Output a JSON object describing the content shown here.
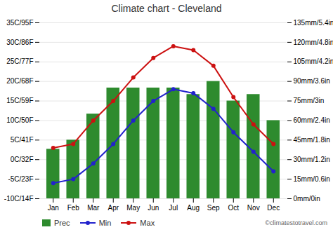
{
  "chart_data": {
    "type": "combo",
    "title": "Climate chart - Cleveland",
    "categories": [
      "Jan",
      "Feb",
      "Mar",
      "Apr",
      "May",
      "Jun",
      "Jul",
      "Aug",
      "Sep",
      "Oct",
      "Nov",
      "Dec"
    ],
    "series": [
      {
        "name": "Prec",
        "type": "bar",
        "axis": "y2",
        "color": "#2e8b2e",
        "values": [
          38,
          45,
          65,
          85,
          85,
          85,
          85,
          80,
          90,
          75,
          80,
          60
        ]
      },
      {
        "name": "Min",
        "type": "line",
        "color": "#2222cc",
        "marker": "circle",
        "values": [
          -6,
          -5,
          -1,
          4,
          10,
          15,
          18,
          17,
          13,
          7,
          2,
          -3
        ]
      },
      {
        "name": "Max",
        "type": "line",
        "color": "#cc1111",
        "marker": "circle",
        "values": [
          3,
          4,
          10,
          15,
          21,
          26,
          29,
          28,
          24,
          16,
          9,
          4
        ]
      }
    ],
    "ylim": [
      -10,
      35
    ],
    "yticks": [
      {
        "value": -10,
        "label": "-10C/14F"
      },
      {
        "value": -5,
        "label": "-5C/23F"
      },
      {
        "value": 0,
        "label": "0C/32F"
      },
      {
        "value": 5,
        "label": "5C/41F"
      },
      {
        "value": 10,
        "label": "10C/50F"
      },
      {
        "value": 15,
        "label": "15C/59F"
      },
      {
        "value": 20,
        "label": "20C/68F"
      },
      {
        "value": 25,
        "label": "25C/77F"
      },
      {
        "value": 30,
        "label": "30C/86F"
      },
      {
        "value": 35,
        "label": "35C/95F"
      }
    ],
    "y2lim": [
      0,
      135
    ],
    "y2ticks": [
      {
        "value": 0,
        "label": "0mm/0in"
      },
      {
        "value": 15,
        "label": "15mm/0.6in"
      },
      {
        "value": 30,
        "label": "30mm/1.2in"
      },
      {
        "value": 45,
        "label": "45mm/1.8in"
      },
      {
        "value": 60,
        "label": "60mm/2.4in"
      },
      {
        "value": 75,
        "label": "75mm/3in"
      },
      {
        "value": 90,
        "label": "90mm/3.6in"
      },
      {
        "value": 105,
        "label": "105mm/4.2in"
      },
      {
        "value": 120,
        "label": "120mm/4.8in"
      },
      {
        "value": 135,
        "label": "135mm/5.4in"
      }
    ],
    "grid": true,
    "legend": "bottom",
    "annotations": [
      "©climatestotravel.com"
    ]
  }
}
